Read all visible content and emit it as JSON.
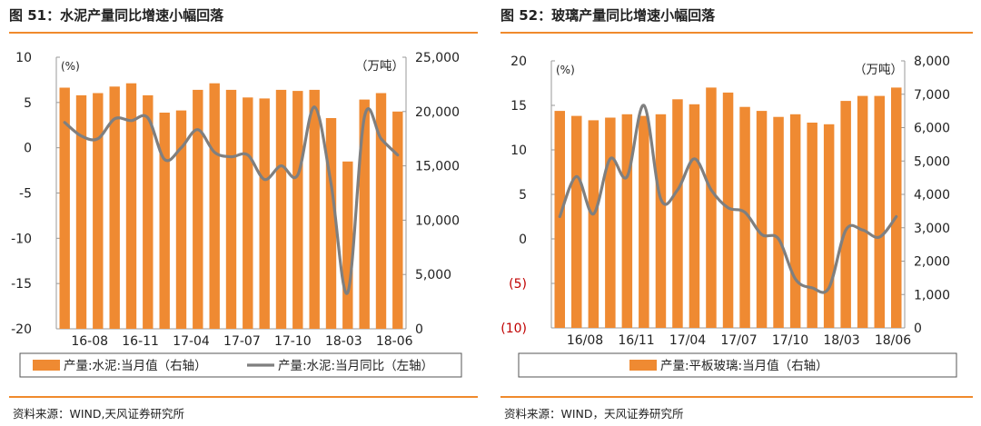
{
  "charts": [
    {
      "title": "图 51：水泥产量同比增速小幅回落",
      "source": "资料来源：WIND,天风证券研究所",
      "colors": {
        "bar": "#ef8a32",
        "line": "#7f7f7f",
        "accent": "#f08a2c"
      },
      "left_unit": "(%)",
      "right_unit": "（万吨）",
      "legend": [
        "产量:水泥:当月值（右轴）",
        "产量:水泥:当月同比（左轴）"
      ],
      "left_ticks": [
        "10",
        "5",
        "0",
        "-5",
        "-10",
        "-15",
        "-20"
      ],
      "right_ticks": [
        "25,000",
        "20,000",
        "15,000",
        "10,000",
        "5,000",
        "0"
      ],
      "x_ticks": [
        "16-08",
        "16-11",
        "17-04",
        "17-07",
        "17-10",
        "18-03",
        "18-06"
      ]
    },
    {
      "title": "图 52：玻璃产量同比增速小幅回落",
      "source": "资料来源：WIND，天风证券研究所",
      "colors": {
        "bar": "#ef8a32",
        "line": "#7f7f7f",
        "neg": "#c00000"
      },
      "left_unit": "(%)",
      "right_unit": "（万吨）",
      "legend": [
        "产量:平板玻璃:当月值（右轴）"
      ],
      "left_ticks": [
        "20",
        "15",
        "10",
        "5",
        "0",
        "(5)",
        "(10)"
      ],
      "right_ticks": [
        "8,000",
        "7,000",
        "6,000",
        "5,000",
        "4,000",
        "3,000",
        "2,000",
        "1,000",
        "0"
      ],
      "x_ticks": [
        "16/08",
        "16/11",
        "17/04",
        "17/07",
        "17/10",
        "18/03",
        "18/06"
      ]
    }
  ],
  "chart_data": [
    {
      "type": "bar",
      "title": "图 51：水泥产量同比增速小幅回落",
      "x": [
        "16-06",
        "16-07",
        "16-08",
        "16-09",
        "16-10",
        "16-11",
        "16-12",
        "17-03",
        "17-04",
        "17-05",
        "17-06",
        "17-07",
        "17-08",
        "17-09",
        "17-10",
        "17-11",
        "17-12",
        "18-03",
        "18-04",
        "18-05",
        "18-06"
      ],
      "series": [
        {
          "name": "产量:水泥:当月值（右轴）",
          "axis": "right",
          "type": "bar",
          "values": [
            22200,
            21500,
            21700,
            22300,
            22600,
            21500,
            19900,
            20100,
            22000,
            22600,
            22000,
            21300,
            21200,
            22000,
            21900,
            22000,
            19400,
            15400,
            21100,
            21700,
            20000
          ]
        },
        {
          "name": "产量:水泥:当月同比（左轴）",
          "axis": "left",
          "type": "line",
          "values": [
            2.8,
            1.3,
            1.0,
            3.2,
            3.0,
            3.3,
            -1.3,
            0.0,
            2.0,
            -0.5,
            -1.0,
            -0.8,
            -3.5,
            -2.0,
            -3.0,
            4.5,
            -4.0,
            -16.0,
            3.4,
            1.0,
            -0.8
          ]
        }
      ],
      "ylim_left": [
        -20,
        10
      ],
      "ylim_right": [
        0,
        25000
      ],
      "xlabel": "",
      "ylabel_left": "(%)",
      "ylabel_right": "（万吨）"
    },
    {
      "type": "bar",
      "title": "图 52：玻璃产量同比增速小幅回落",
      "x": [
        "16-06",
        "16-07",
        "16-08",
        "16-09",
        "16-10",
        "16-11",
        "16-12",
        "17-03",
        "17-04",
        "17-05",
        "17-06",
        "17-07",
        "17-08",
        "17-09",
        "17-10",
        "17-11",
        "17-12",
        "18-03",
        "18-04",
        "18-05",
        "18-06"
      ],
      "series": [
        {
          "name": "产量:平板玻璃:当月值（右轴）",
          "axis": "right",
          "type": "bar",
          "values": [
            6500,
            6350,
            6220,
            6300,
            6400,
            6350,
            6400,
            6850,
            6700,
            7200,
            7050,
            6620,
            6500,
            6320,
            6400,
            6150,
            6100,
            6800,
            6950,
            6950,
            7200
          ]
        },
        {
          "name": "产量:平板玻璃:当月同比（左轴）",
          "axis": "left",
          "type": "line",
          "values": [
            2.5,
            7.0,
            2.8,
            9.0,
            7.0,
            15.0,
            4.5,
            5.5,
            9.0,
            5.5,
            3.5,
            3.0,
            0.5,
            0.0,
            -4.5,
            -5.5,
            -5.5,
            1.0,
            1.0,
            0.2,
            2.5
          ]
        }
      ],
      "ylim_left": [
        -10,
        20
      ],
      "ylim_right": [
        0,
        8000
      ],
      "xlabel": "",
      "ylabel_left": "(%)",
      "ylabel_right": "（万吨）"
    }
  ]
}
